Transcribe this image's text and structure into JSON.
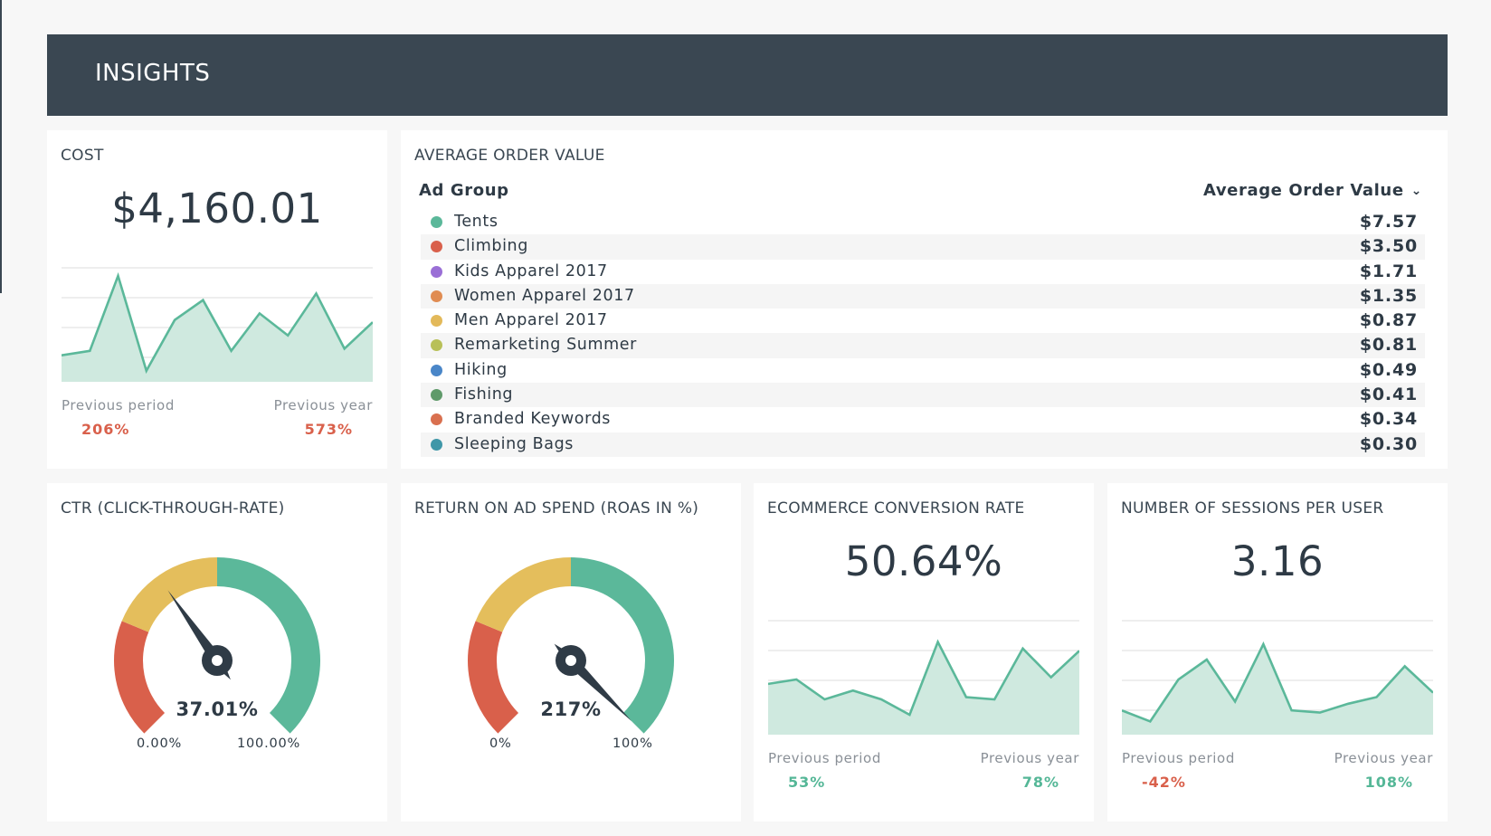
{
  "header": {
    "title": "INSIGHTS"
  },
  "cost": {
    "title": "COST",
    "value": "$4,160.01",
    "series": [
      12,
      14,
      48,
      5,
      28,
      37,
      14,
      31,
      21,
      40,
      15,
      27
    ],
    "prev_period_label": "Previous period",
    "prev_year_label": "Previous year",
    "prev_period_value": "206%",
    "prev_year_value": "573%"
  },
  "aov": {
    "title": "AVERAGE ORDER VALUE",
    "col_group": "Ad Group",
    "col_value": "Average Order Value",
    "sort_icon": "chevron-down-icon",
    "rows": [
      {
        "name": "Tents",
        "value": "$7.57",
        "color": "#5bb89a"
      },
      {
        "name": "Climbing",
        "value": "$3.50",
        "color": "#d9604b"
      },
      {
        "name": "Kids Apparel 2017",
        "value": "$1.71",
        "color": "#9a6fd6"
      },
      {
        "name": "Women Apparel 2017",
        "value": "$1.35",
        "color": "#e08c52"
      },
      {
        "name": "Men Apparel 2017",
        "value": "$0.87",
        "color": "#e3b95a"
      },
      {
        "name": "Remarketing Summer",
        "value": "$0.81",
        "color": "#b8c058"
      },
      {
        "name": "Hiking",
        "value": "$0.49",
        "color": "#4a86c8"
      },
      {
        "name": "Fishing",
        "value": "$0.41",
        "color": "#5f9a6a"
      },
      {
        "name": "Branded Keywords",
        "value": "$0.34",
        "color": "#d9704f"
      },
      {
        "name": "Sleeping Bags",
        "value": "$0.30",
        "color": "#3f97a8"
      }
    ]
  },
  "ctr": {
    "title": "CTR (CLICK-THROUGH-RATE)",
    "value": "37.01%",
    "fraction": 0.3701,
    "min": "0.00%",
    "max": "100.00%"
  },
  "roas": {
    "title": "RETURN ON AD SPEND (ROAS IN %)",
    "value": "217%",
    "fraction": 1.0,
    "min": "0%",
    "max": "100%"
  },
  "conversion": {
    "title": "ECOMMERCE CONVERSION RATE",
    "value": "50.64%",
    "series": [
      23,
      25,
      16,
      20,
      16,
      9,
      42,
      17,
      16,
      39,
      26,
      38
    ],
    "prev_period_label": "Previous period",
    "prev_year_label": "Previous year",
    "prev_period_value": "53%",
    "prev_year_value": "78%"
  },
  "sessions": {
    "title": "NUMBER OF SESSIONS PER USER",
    "value": "3.16",
    "series": [
      11,
      6,
      25,
      34,
      15,
      41,
      11,
      10,
      14,
      17,
      31,
      19
    ],
    "prev_period_label": "Previous period",
    "prev_year_label": "Previous year",
    "prev_period_value": "-42%",
    "prev_year_value": "108%"
  },
  "colors": {
    "header_bg": "#3a4752",
    "accent_green": "#5bb89a",
    "gauge_red": "#d9604b",
    "gauge_yellow": "#e4be5c",
    "negative": "#d9604b",
    "positive": "#55b797"
  }
}
